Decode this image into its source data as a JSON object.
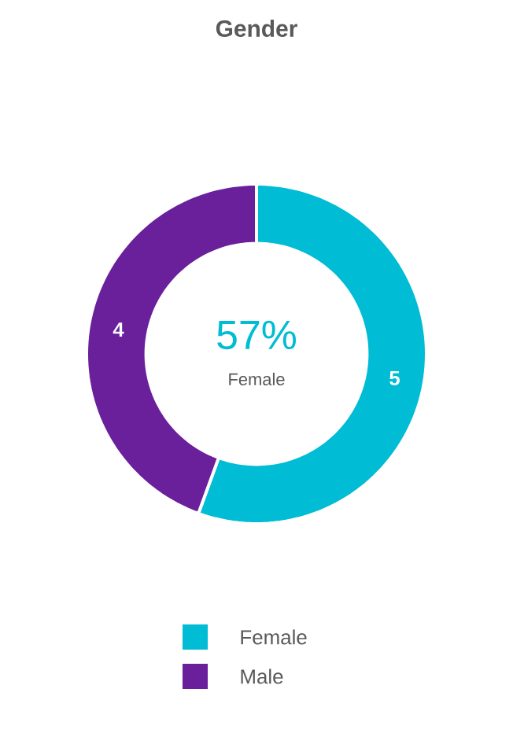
{
  "chart_data": {
    "type": "donut",
    "title": "Gender",
    "categories": [
      "Female",
      "Male"
    ],
    "values": [
      5,
      4
    ],
    "colors": [
      "#00bcd4",
      "#6a1f9b"
    ],
    "data_labels": true,
    "legend": "bottom",
    "annotations": [
      "57%",
      "Female"
    ]
  }
}
